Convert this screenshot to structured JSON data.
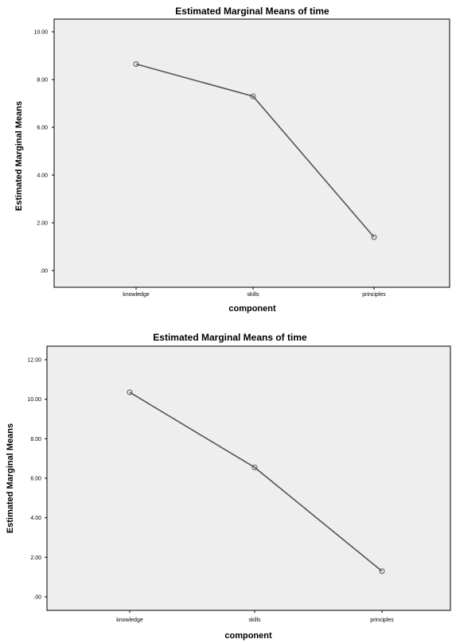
{
  "chart_data": [
    {
      "type": "line",
      "title": "Estimated Marginal Means of time",
      "xlabel": "component",
      "ylabel": "Estimated Marginal Means",
      "categories": [
        "knowledge",
        "skills",
        "principles"
      ],
      "series": [
        {
          "values": [
            8.65,
            7.3,
            1.4
          ]
        }
      ],
      "ylim": [
        0,
        10
      ],
      "yticks": [
        0,
        2,
        4,
        6,
        8,
        10
      ],
      "ytick_labels": [
        ".00",
        "2.00",
        "4.00",
        "6.00",
        "8.00",
        "10.00"
      ],
      "grid": false
    },
    {
      "type": "line",
      "title": "Estimated Marginal Means of time",
      "xlabel": "component",
      "ylabel": "Estimated Marginal Means",
      "categories": [
        "knowledge",
        "skills",
        "principles"
      ],
      "series": [
        {
          "values": [
            10.35,
            6.55,
            1.3
          ]
        }
      ],
      "ylim": [
        0,
        12
      ],
      "yticks": [
        0,
        2,
        4,
        6,
        8,
        10,
        12
      ],
      "ytick_labels": [
        ".00",
        "2.00",
        "4.00",
        "6.00",
        "8.00",
        "10.00",
        "12.00"
      ],
      "grid": false
    }
  ],
  "colors": {
    "line": "#555555",
    "marker": "#555555",
    "plot_bg": "#eeeeee"
  }
}
